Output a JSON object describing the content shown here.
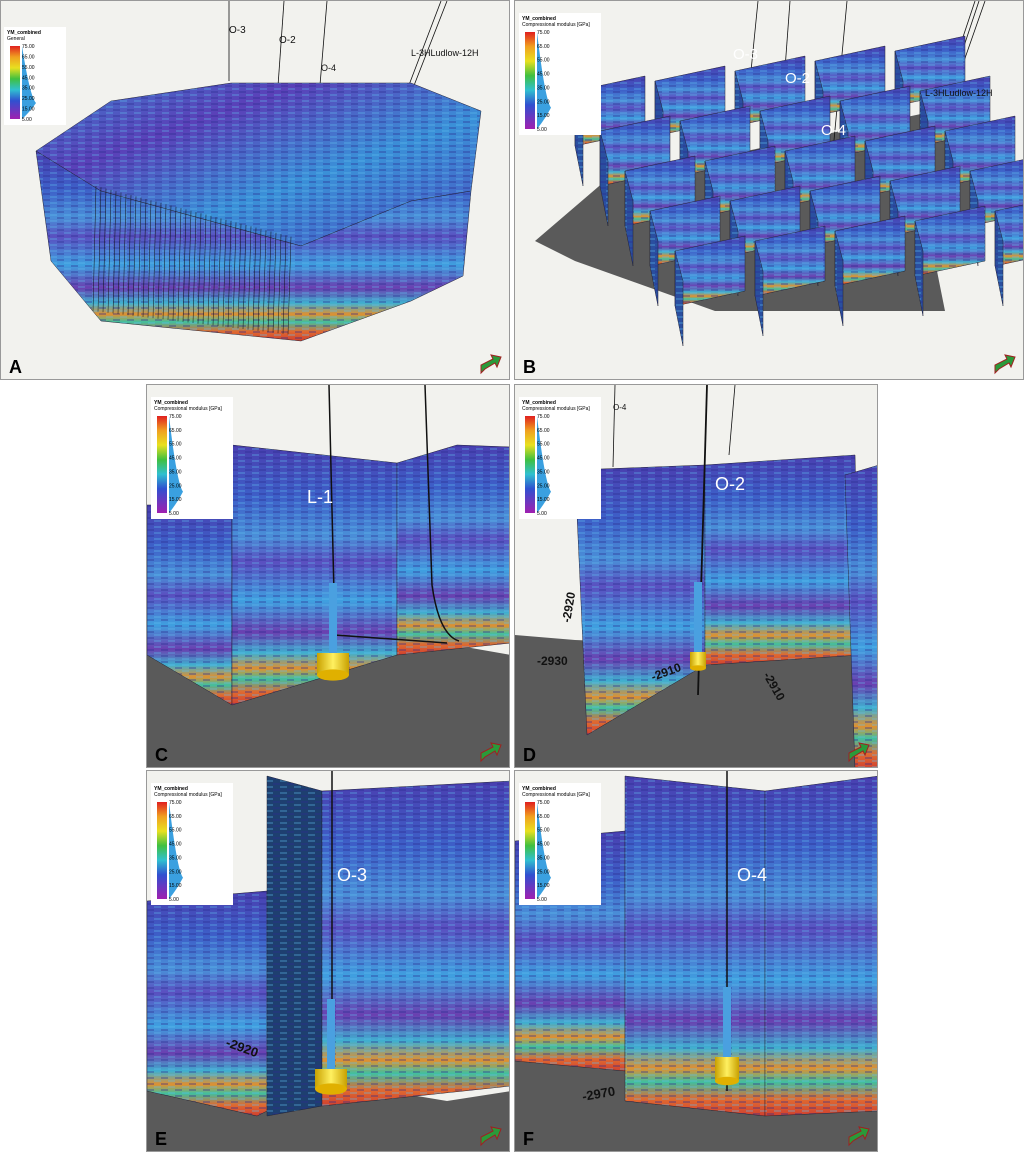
{
  "panels": [
    {
      "letter": "A",
      "legend": {
        "title": "YM_combined",
        "subtitle": "General",
        "ticks": [
          "75.00",
          "65.00",
          "55.00",
          "45.00",
          "35.00",
          "25.00",
          "15.00",
          "5.00"
        ]
      },
      "wells": [
        "O-3",
        "O-2",
        "O-4",
        "L-3HLudlow-12H"
      ]
    },
    {
      "letter": "B",
      "legend": {
        "title": "YM_combined",
        "subtitle": "Compressional modulus [GPa]",
        "ticks": [
          "75.00",
          "65.00",
          "55.00",
          "45.00",
          "35.00",
          "25.00",
          "15.00",
          "5.00"
        ]
      },
      "wells": [
        "O-3",
        "O-2",
        "O-4",
        "L-3HLudlow-12H"
      ]
    },
    {
      "letter": "C",
      "legend": {
        "title": "YM_combined",
        "subtitle": "Compressional modulus [GPa]",
        "ticks": [
          "75.00",
          "65.00",
          "55.00",
          "45.00",
          "35.00",
          "25.00",
          "15.00",
          "5.00"
        ]
      },
      "wells": [
        "L-1"
      ]
    },
    {
      "letter": "D",
      "legend": {
        "title": "YM_combined",
        "subtitle": "Compressional modulus [GPa]",
        "ticks": [
          "75.00",
          "65.00",
          "55.00",
          "45.00",
          "35.00",
          "25.00",
          "15.00",
          "5.00"
        ]
      },
      "wells": [
        "O-4",
        "O-2"
      ],
      "contours": [
        "-2920",
        "-2930",
        "-2910",
        "-2910"
      ]
    },
    {
      "letter": "E",
      "legend": {
        "title": "YM_combined",
        "subtitle": "Compressional modulus [GPa]",
        "ticks": [
          "75.00",
          "65.00",
          "55.00",
          "45.00",
          "35.00",
          "25.00",
          "15.00",
          "5.00"
        ]
      },
      "wells": [
        "O-3"
      ],
      "contours": [
        "-2920"
      ]
    },
    {
      "letter": "F",
      "legend": {
        "title": "YM_combined",
        "subtitle": "Compressional modulus [GPa]",
        "ticks": [
          "75.00",
          "65.00",
          "55.00",
          "45.00",
          "35.00",
          "25.00",
          "15.00",
          "5.00"
        ]
      },
      "wells": [
        "O-4"
      ],
      "contours": [
        "-2970"
      ]
    }
  ]
}
